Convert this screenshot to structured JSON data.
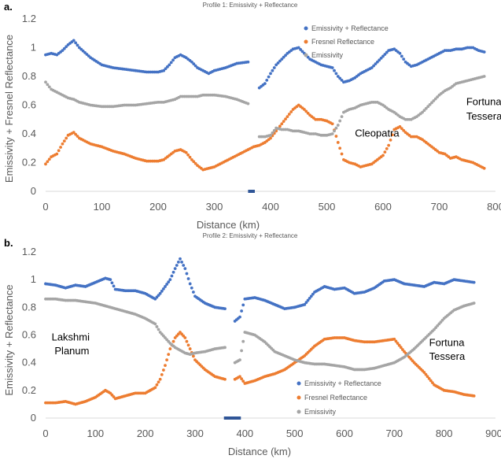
{
  "colors": {
    "emis_refl": "#4472C4",
    "fresnel": "#ED7D31",
    "emissivity": "#A5A5A5",
    "axis": "#595959"
  },
  "panels": [
    {
      "label": "a.",
      "legend": [
        "Emissivity + Reflectance",
        "Fresnel Reflectance",
        "Emissivity"
      ]
    },
    {
      "label": "b.",
      "legend": [
        "Emissivity + Reflectance",
        "Fresnel Reflectance",
        "Emissivity"
      ]
    }
  ],
  "chart_data": [
    {
      "type": "scatter",
      "title": "Profile 1: Emissivity + Reflectance",
      "xlabel": "Distance (km)",
      "ylabel": "Emissivity + Fresnel Reflectance",
      "xlim": [
        0,
        800
      ],
      "ylim": [
        0,
        1.2
      ],
      "xticks": [
        0,
        100,
        200,
        300,
        400,
        500,
        600,
        700,
        800
      ],
      "yticks": [
        0,
        0.2,
        0.4,
        0.6,
        0.8,
        1,
        1.2
      ],
      "xtick_labels": [
        "0",
        "100",
        "200",
        "300",
        "400",
        "500",
        "600",
        "700",
        "800"
      ],
      "ytick_labels": [
        "0",
        "0.2",
        "0.4",
        "0.6",
        "0.8",
        "1",
        "1.2"
      ],
      "gap_marker": [
        360,
        372
      ],
      "annotations": [
        {
          "text": "Fortuna",
          "x": 748,
          "y": 0.6
        },
        {
          "text": "Tessera",
          "x": 748,
          "y": 0.5
        },
        {
          "text": "Cleopatra",
          "x": 550,
          "y": 0.38
        }
      ],
      "series": [
        {
          "name": "Emissivity + Reflectance",
          "color": "#4472C4",
          "x": [
            0,
            10,
            20,
            30,
            40,
            50,
            60,
            80,
            100,
            120,
            140,
            160,
            180,
            200,
            210,
            220,
            230,
            240,
            250,
            260,
            270,
            280,
            290,
            300,
            320,
            340,
            360,
            370,
            380,
            390,
            400,
            410,
            420,
            430,
            440,
            450,
            460,
            470,
            480,
            490,
            500,
            510,
            520,
            530,
            540,
            550,
            560,
            570,
            580,
            590,
            600,
            610,
            620,
            630,
            640,
            650,
            660,
            670,
            680,
            690,
            700,
            710,
            720,
            730,
            740,
            750,
            760,
            770,
            780
          ],
          "y": [
            0.95,
            0.96,
            0.95,
            0.98,
            1.02,
            1.05,
            1.0,
            0.93,
            0.88,
            0.86,
            0.85,
            0.84,
            0.83,
            0.83,
            0.84,
            0.88,
            0.93,
            0.95,
            0.93,
            0.9,
            0.86,
            0.84,
            0.82,
            0.84,
            0.86,
            0.89,
            0.9,
            null,
            0.72,
            0.75,
            0.82,
            0.88,
            0.92,
            0.96,
            0.99,
            1.0,
            0.96,
            0.92,
            0.9,
            0.88,
            0.87,
            0.86,
            0.8,
            0.76,
            0.77,
            0.79,
            0.82,
            0.84,
            0.86,
            0.9,
            0.94,
            0.98,
            0.99,
            0.96,
            0.9,
            0.87,
            0.88,
            0.9,
            0.92,
            0.94,
            0.96,
            0.98,
            0.98,
            0.99,
            0.99,
            1.0,
            1.0,
            0.98,
            0.97
          ]
        },
        {
          "name": "Fresnel Reflectance",
          "color": "#ED7D31",
          "x": [
            0,
            10,
            20,
            30,
            40,
            50,
            60,
            80,
            100,
            120,
            140,
            160,
            180,
            200,
            210,
            220,
            230,
            240,
            250,
            260,
            270,
            280,
            290,
            300,
            320,
            340,
            360,
            370,
            380,
            390,
            400,
            410,
            420,
            430,
            440,
            450,
            460,
            470,
            480,
            490,
            500,
            510,
            520,
            530,
            540,
            550,
            560,
            570,
            580,
            590,
            600,
            610,
            620,
            630,
            640,
            650,
            660,
            670,
            680,
            690,
            700,
            710,
            720,
            730,
            740,
            750,
            760,
            770,
            780
          ],
          "y": [
            0.19,
            0.24,
            0.26,
            0.33,
            0.39,
            0.41,
            0.37,
            0.33,
            0.31,
            0.28,
            0.26,
            0.23,
            0.21,
            0.21,
            0.22,
            0.25,
            0.28,
            0.29,
            0.27,
            0.22,
            0.18,
            0.15,
            0.16,
            0.17,
            0.21,
            0.25,
            0.29,
            0.31,
            0.32,
            0.34,
            0.37,
            0.42,
            0.47,
            0.52,
            0.57,
            0.6,
            0.57,
            0.53,
            0.5,
            0.5,
            0.49,
            0.47,
            0.34,
            0.22,
            0.2,
            0.19,
            0.17,
            0.18,
            0.19,
            0.22,
            0.25,
            0.32,
            0.43,
            0.45,
            0.41,
            0.38,
            0.38,
            0.36,
            0.33,
            0.3,
            0.27,
            0.26,
            0.23,
            0.24,
            0.22,
            0.21,
            0.2,
            0.18,
            0.16
          ]
        },
        {
          "name": "Emissivity",
          "color": "#A5A5A5",
          "x": [
            0,
            10,
            20,
            30,
            40,
            50,
            60,
            80,
            100,
            120,
            140,
            160,
            180,
            200,
            210,
            220,
            230,
            240,
            250,
            260,
            270,
            280,
            290,
            300,
            320,
            340,
            360,
            370,
            380,
            390,
            400,
            410,
            420,
            430,
            440,
            450,
            460,
            470,
            480,
            490,
            500,
            510,
            520,
            530,
            540,
            550,
            560,
            570,
            580,
            590,
            600,
            610,
            620,
            630,
            640,
            650,
            660,
            670,
            680,
            690,
            700,
            710,
            720,
            730,
            740,
            750,
            760,
            770,
            780
          ],
          "y": [
            0.76,
            0.71,
            0.69,
            0.67,
            0.65,
            0.64,
            0.62,
            0.6,
            0.59,
            0.59,
            0.6,
            0.6,
            0.61,
            0.62,
            0.62,
            0.63,
            0.64,
            0.66,
            0.66,
            0.66,
            0.66,
            0.67,
            0.67,
            0.67,
            0.66,
            0.64,
            0.61,
            null,
            0.38,
            0.38,
            0.39,
            0.44,
            0.43,
            0.43,
            0.42,
            0.42,
            0.41,
            0.4,
            0.4,
            0.39,
            0.39,
            0.4,
            0.46,
            0.55,
            0.57,
            0.58,
            0.6,
            0.61,
            0.62,
            0.62,
            0.6,
            0.57,
            0.55,
            0.52,
            0.5,
            0.5,
            0.52,
            0.55,
            0.59,
            0.63,
            0.67,
            0.7,
            0.72,
            0.75,
            0.76,
            0.77,
            0.78,
            0.79,
            0.8
          ]
        }
      ]
    },
    {
      "type": "scatter",
      "title": "Profile 2: Emissivity + Reflectance",
      "xlabel": "Distance (km)",
      "ylabel": "Emissivity + Reflectance",
      "xlim": [
        0,
        900
      ],
      "ylim": [
        0,
        1.2
      ],
      "xticks": [
        0,
        100,
        200,
        300,
        400,
        500,
        600,
        700,
        800,
        900
      ],
      "yticks": [
        0,
        0.2,
        0.4,
        0.6,
        0.8,
        1,
        1.2
      ],
      "xtick_labels": [
        "0",
        "100",
        "200",
        "300",
        "400",
        "500",
        "600",
        "700",
        "800",
        "900"
      ],
      "ytick_labels": [
        "0",
        "0.2",
        "0.4",
        "0.6",
        "0.8",
        "1",
        "1.2"
      ],
      "gap_marker": [
        358,
        392
      ],
      "annotations": [
        {
          "text": "Lakshmi",
          "x": 12,
          "y": 0.56
        },
        {
          "text": "Planum",
          "x": 18,
          "y": 0.46
        },
        {
          "text": "Fortuna",
          "x": 770,
          "y": 0.52
        },
        {
          "text": "Tessera",
          "x": 770,
          "y": 0.42
        }
      ],
      "series": [
        {
          "name": "Emissivity + Reflectance",
          "color": "#4472C4",
          "x": [
            0,
            20,
            40,
            60,
            80,
            100,
            120,
            130,
            140,
            160,
            180,
            200,
            220,
            230,
            240,
            250,
            260,
            270,
            280,
            290,
            300,
            320,
            340,
            360,
            370,
            380,
            390,
            400,
            420,
            440,
            460,
            480,
            500,
            520,
            540,
            560,
            580,
            600,
            620,
            640,
            660,
            680,
            700,
            720,
            740,
            760,
            780,
            800,
            820,
            840,
            860
          ],
          "y": [
            0.97,
            0.96,
            0.94,
            0.96,
            0.95,
            0.98,
            1.01,
            1.0,
            0.93,
            0.92,
            0.92,
            0.9,
            0.86,
            0.9,
            0.95,
            1.0,
            1.08,
            1.15,
            1.08,
            0.97,
            0.88,
            0.83,
            0.8,
            0.79,
            null,
            0.7,
            0.73,
            0.86,
            0.87,
            0.85,
            0.82,
            0.79,
            0.8,
            0.82,
            0.91,
            0.95,
            0.93,
            0.94,
            0.9,
            0.91,
            0.94,
            0.99,
            1.0,
            0.97,
            0.96,
            0.95,
            0.98,
            0.97,
            1.0,
            0.99,
            0.98
          ]
        },
        {
          "name": "Fresnel Reflectance",
          "color": "#ED7D31",
          "x": [
            0,
            20,
            40,
            60,
            80,
            100,
            120,
            130,
            140,
            160,
            180,
            200,
            220,
            230,
            240,
            250,
            260,
            270,
            280,
            290,
            300,
            320,
            340,
            360,
            370,
            380,
            390,
            400,
            420,
            440,
            460,
            480,
            500,
            520,
            540,
            560,
            580,
            600,
            620,
            640,
            660,
            680,
            700,
            720,
            740,
            760,
            780,
            800,
            820,
            840,
            860
          ],
          "y": [
            0.11,
            0.11,
            0.12,
            0.1,
            0.12,
            0.15,
            0.2,
            0.18,
            0.14,
            0.16,
            0.18,
            0.18,
            0.22,
            0.28,
            0.38,
            0.5,
            0.58,
            0.62,
            0.58,
            0.5,
            0.42,
            0.35,
            0.3,
            0.28,
            null,
            0.28,
            0.3,
            0.25,
            0.27,
            0.3,
            0.32,
            0.35,
            0.4,
            0.45,
            0.52,
            0.57,
            0.58,
            0.58,
            0.56,
            0.55,
            0.55,
            0.56,
            0.57,
            0.48,
            0.4,
            0.33,
            0.24,
            0.2,
            0.19,
            0.17,
            0.16
          ]
        },
        {
          "name": "Emissivity",
          "color": "#A5A5A5",
          "x": [
            0,
            20,
            40,
            60,
            80,
            100,
            120,
            130,
            140,
            160,
            180,
            200,
            220,
            230,
            240,
            250,
            260,
            270,
            280,
            290,
            300,
            320,
            340,
            360,
            370,
            380,
            390,
            400,
            420,
            440,
            460,
            480,
            500,
            520,
            540,
            560,
            580,
            600,
            620,
            640,
            660,
            680,
            700,
            720,
            740,
            760,
            780,
            800,
            820,
            840,
            860
          ],
          "y": [
            0.86,
            0.86,
            0.85,
            0.85,
            0.84,
            0.83,
            0.81,
            0.8,
            0.79,
            0.77,
            0.75,
            0.72,
            0.68,
            0.62,
            0.58,
            0.54,
            0.51,
            0.49,
            0.47,
            0.46,
            0.47,
            0.48,
            0.5,
            0.51,
            null,
            0.4,
            0.42,
            0.62,
            0.6,
            0.55,
            0.48,
            0.45,
            0.42,
            0.4,
            0.39,
            0.39,
            0.38,
            0.37,
            0.35,
            0.35,
            0.36,
            0.38,
            0.4,
            0.44,
            0.5,
            0.57,
            0.64,
            0.72,
            0.78,
            0.81,
            0.83
          ]
        }
      ]
    }
  ]
}
